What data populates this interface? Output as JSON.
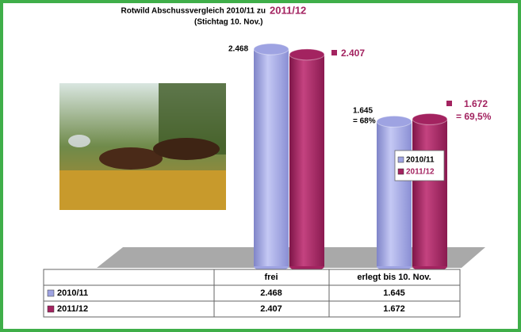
{
  "chart_data": {
    "type": "bar3d",
    "title": "Rotwild Abschussvergleich 2010/11 zu",
    "title_highlight": "2011/12",
    "subtitle": "(Stichtag 10. Nov.)",
    "categories": [
      "frei",
      "erlegt bis 10. Nov."
    ],
    "series": [
      {
        "name": "2010/11",
        "color": "#9ea3e2",
        "values": [
          2468,
          1645
        ],
        "value_labels": [
          "2.468",
          "1.645"
        ]
      },
      {
        "name": "2011/12",
        "color": "#a32360",
        "values": [
          2407,
          1672
        ],
        "value_labels": [
          "2.407",
          "1.672"
        ]
      }
    ],
    "annotations": [
      "= 68%",
      "= 69,5%"
    ]
  }
}
